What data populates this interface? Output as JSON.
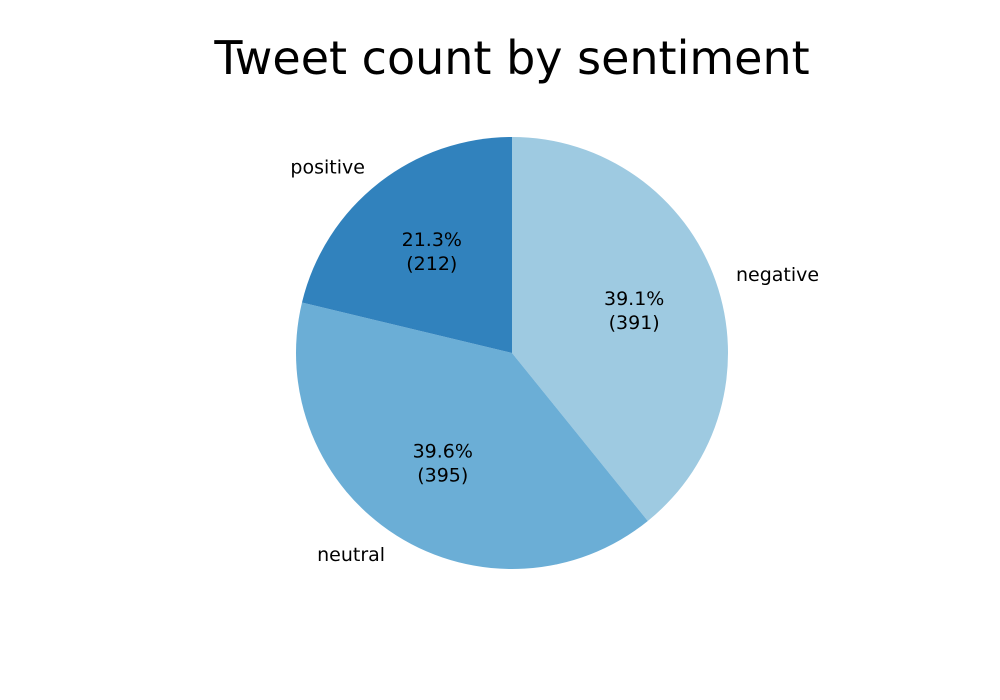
{
  "chart_data": {
    "type": "pie",
    "title": "Tweet count by sentiment",
    "slices": [
      {
        "label": "negative",
        "value": 391,
        "percent_text": "39.1%",
        "count_text": "(391)",
        "color": "#9ecae1"
      },
      {
        "label": "neutral",
        "value": 395,
        "percent_text": "39.6%",
        "count_text": "(395)",
        "color": "#6baed6"
      },
      {
        "label": "positive",
        "value": 212,
        "percent_text": "21.3%",
        "count_text": "(212)",
        "color": "#3182bd"
      }
    ],
    "start_angle_deg": 90,
    "direction": "clockwise",
    "legend": "none"
  }
}
